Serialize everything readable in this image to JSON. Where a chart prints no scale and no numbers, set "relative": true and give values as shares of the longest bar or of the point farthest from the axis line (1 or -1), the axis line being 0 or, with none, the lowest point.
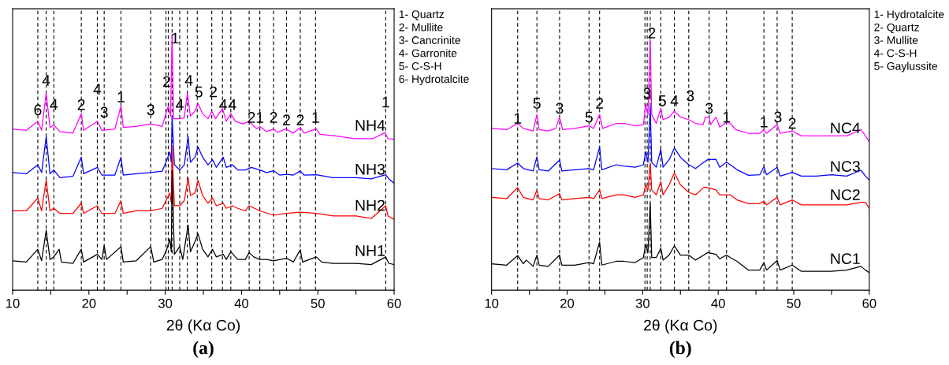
{
  "chart_data": [
    {
      "type": "line",
      "title": "(a)",
      "xlabel": "2θ (Kα Co)",
      "relative": true,
      "tick_labels": "x",
      "xlim": [
        10,
        60
      ],
      "xticks": [
        10,
        {
          "value": 15,
          "label": null
        },
        20,
        {
          "value": 25,
          "label": null
        },
        30,
        {
          "value": 35,
          "label": null
        },
        40,
        {
          "value": 45,
          "label": null
        },
        50,
        {
          "value": 55,
          "label": null
        },
        60
      ],
      "series": [
        {
          "name": "NH4",
          "color": "#ff00ff",
          "x": [
            10.0,
            11.8,
            13.3,
            13.8,
            14.4,
            14.9,
            15.4,
            16.2,
            17.9,
            19.0,
            19.3,
            21.1,
            21.7,
            23.4,
            24.2,
            24.5,
            26.2,
            28.1,
            29.6,
            30.1,
            30.4,
            30.7,
            30.9,
            31.1,
            31.9,
            32.5,
            32.9,
            33.3,
            33.9,
            34.3,
            34.9,
            35.6,
            36.1,
            36.6,
            37.5,
            38.0,
            38.6,
            39.2,
            40.2,
            41.0,
            41.3,
            42.0,
            42.4,
            43.3,
            44.2,
            44.7,
            45.8,
            46.8,
            47.7,
            48.2,
            49.8,
            50.3,
            52.3,
            54.8,
            57.2,
            58.8,
            59.2,
            60.0
          ],
          "values": [
            0.63,
            0.625,
            0.66,
            0.625,
            0.77,
            0.636,
            0.645,
            0.62,
            0.614,
            0.69,
            0.625,
            0.66,
            0.625,
            0.63,
            0.72,
            0.636,
            0.64,
            0.65,
            0.64,
            0.69,
            0.72,
            0.68,
            1.0,
            0.67,
            0.67,
            0.674,
            0.77,
            0.68,
            0.7,
            0.73,
            0.69,
            0.67,
            0.7,
            0.67,
            0.71,
            0.66,
            0.69,
            0.66,
            0.65,
            0.66,
            0.65,
            0.63,
            0.64,
            0.62,
            0.63,
            0.617,
            0.63,
            0.614,
            0.636,
            0.614,
            0.63,
            0.609,
            0.603,
            0.592,
            0.592,
            0.616,
            0.592,
            0.59
          ]
        },
        {
          "name": "NH3",
          "color": "#0000ff",
          "x": [
            10.0,
            11.8,
            13.3,
            13.8,
            14.4,
            14.9,
            15.4,
            16.2,
            17.9,
            19.0,
            19.3,
            21.1,
            21.7,
            23.4,
            24.2,
            24.5,
            26.2,
            28.1,
            29.6,
            30.1,
            30.6,
            30.8,
            30.9,
            31.2,
            31.9,
            32.5,
            33.0,
            33.3,
            33.9,
            34.3,
            34.9,
            35.6,
            36.2,
            36.7,
            37.6,
            38.0,
            38.8,
            39.5,
            40.5,
            41.3,
            42.4,
            43.3,
            44.2,
            45.0,
            45.9,
            46.8,
            47.7,
            48.2,
            49.8,
            52.0,
            55.0,
            57.0,
            58.9,
            59.3,
            60.0
          ],
          "values": [
            0.46,
            0.455,
            0.49,
            0.46,
            0.6,
            0.455,
            0.47,
            0.44,
            0.445,
            0.52,
            0.455,
            0.48,
            0.45,
            0.45,
            0.52,
            0.45,
            0.455,
            0.46,
            0.465,
            0.5,
            0.54,
            0.5,
            0.68,
            0.49,
            0.47,
            0.49,
            0.6,
            0.5,
            0.52,
            0.56,
            0.52,
            0.49,
            0.51,
            0.48,
            0.52,
            0.48,
            0.49,
            0.47,
            0.47,
            0.48,
            0.47,
            0.46,
            0.467,
            0.45,
            0.453,
            0.45,
            0.466,
            0.45,
            0.451,
            0.44,
            0.44,
            0.435,
            0.451,
            0.435,
            0.418
          ]
        },
        {
          "name": "NH2",
          "color": "#ff0000",
          "x": [
            10.0,
            11.8,
            13.3,
            13.8,
            14.4,
            14.9,
            15.4,
            16.2,
            17.9,
            19.0,
            19.3,
            21.1,
            21.7,
            23.4,
            24.2,
            24.5,
            26.2,
            28.1,
            29.6,
            30.1,
            30.6,
            30.8,
            30.9,
            31.2,
            31.9,
            32.5,
            33.0,
            33.3,
            33.9,
            34.3,
            34.9,
            35.6,
            36.2,
            36.7,
            37.6,
            38.0,
            38.8,
            39.5,
            40.5,
            41.0,
            42.4,
            44.2,
            45.9,
            47.7,
            49.8,
            52.0,
            55.0,
            57.0,
            58.9,
            59.2,
            60.0
          ],
          "values": [
            0.31,
            0.31,
            0.36,
            0.31,
            0.43,
            0.31,
            0.32,
            0.3,
            0.3,
            0.34,
            0.3,
            0.33,
            0.3,
            0.3,
            0.35,
            0.3,
            0.31,
            0.31,
            0.32,
            0.35,
            0.38,
            0.34,
            0.565,
            0.33,
            0.33,
            0.35,
            0.44,
            0.37,
            0.38,
            0.43,
            0.37,
            0.34,
            0.36,
            0.33,
            0.34,
            0.32,
            0.33,
            0.32,
            0.31,
            0.33,
            0.31,
            0.293,
            0.3,
            0.305,
            0.3,
            0.29,
            0.29,
            0.28,
            0.33,
            0.29,
            0.277
          ]
        },
        {
          "name": "NH1",
          "color": "#000000",
          "x": [
            10.0,
            11.8,
            13.3,
            13.8,
            14.4,
            14.9,
            15.4,
            16.1,
            16.4,
            17.9,
            19.0,
            19.3,
            21.1,
            21.7,
            22.0,
            22.3,
            24.2,
            24.5,
            26.2,
            28.1,
            28.5,
            29.6,
            30.2,
            30.6,
            30.8,
            30.9,
            31.2,
            31.9,
            32.3,
            33.0,
            33.3,
            33.9,
            34.3,
            34.9,
            35.6,
            36.2,
            36.7,
            37.6,
            38.0,
            38.6,
            39.5,
            40.5,
            41.0,
            41.6,
            42.4,
            43.3,
            44.2,
            45.9,
            46.8,
            47.7,
            48.0,
            49.8,
            50.5,
            52.0,
            55.0,
            57.0,
            58.9,
            59.3,
            60.0
          ],
          "values": [
            0.115,
            0.11,
            0.16,
            0.115,
            0.234,
            0.12,
            0.13,
            0.16,
            0.11,
            0.105,
            0.16,
            0.11,
            0.14,
            0.12,
            0.174,
            0.12,
            0.17,
            0.11,
            0.115,
            0.17,
            0.11,
            0.12,
            0.16,
            0.2,
            0.15,
            0.467,
            0.14,
            0.17,
            0.12,
            0.255,
            0.15,
            0.19,
            0.22,
            0.16,
            0.13,
            0.16,
            0.13,
            0.14,
            0.12,
            0.15,
            0.12,
            0.12,
            0.147,
            0.13,
            0.12,
            0.12,
            0.115,
            0.125,
            0.11,
            0.158,
            0.11,
            0.13,
            0.11,
            0.105,
            0.105,
            0.1,
            0.13,
            0.105,
            0.1
          ]
        }
      ],
      "ref_lines": [
        {
          "axis": "x",
          "value": 13.3,
          "line_style": "dashed"
        },
        {
          "axis": "x",
          "value": 14.4,
          "line_style": "dashed"
        },
        {
          "axis": "x",
          "value": 15.4,
          "line_style": "dashed"
        },
        {
          "axis": "x",
          "value": 19.0,
          "line_style": "dashed"
        },
        {
          "axis": "x",
          "value": 21.1,
          "line_style": "dashed"
        },
        {
          "axis": "x",
          "value": 22.0,
          "line_style": "dashed"
        },
        {
          "axis": "x",
          "value": 24.2,
          "line_style": "dashed"
        },
        {
          "axis": "x",
          "value": 28.1,
          "line_style": "dashed"
        },
        {
          "axis": "x",
          "value": 30.1,
          "line_style": "dashed"
        },
        {
          "axis": "x",
          "value": 30.4,
          "line_style": "dashed"
        },
        {
          "axis": "x",
          "value": 30.9,
          "line_style": "dashed"
        },
        {
          "axis": "x",
          "value": 31.9,
          "line_style": "dashed"
        },
        {
          "axis": "x",
          "value": 32.9,
          "line_style": "dashed"
        },
        {
          "axis": "x",
          "value": 34.2,
          "line_style": "dashed"
        },
        {
          "axis": "x",
          "value": 36.1,
          "line_style": "dashed"
        },
        {
          "axis": "x",
          "value": 37.5,
          "line_style": "dashed"
        },
        {
          "axis": "x",
          "value": 38.6,
          "line_style": "dashed"
        },
        {
          "axis": "x",
          "value": 41.0,
          "line_style": "dashed"
        },
        {
          "axis": "x",
          "value": 42.4,
          "line_style": "dashed"
        },
        {
          "axis": "x",
          "value": 44.2,
          "line_style": "dashed"
        },
        {
          "axis": "x",
          "value": 45.9,
          "line_style": "dashed"
        },
        {
          "axis": "x",
          "value": 47.7,
          "line_style": "dashed"
        },
        {
          "axis": "x",
          "value": 49.7,
          "line_style": "dashed"
        },
        {
          "axis": "x",
          "value": 58.9,
          "line_style": "dashed"
        }
      ],
      "annotations": [
        {
          "text": "6",
          "x": 13.3,
          "y": 0.7
        },
        {
          "text": "4",
          "x": 14.4,
          "y": 0.815
        },
        {
          "text": "4",
          "x": 15.4,
          "y": 0.72
        },
        {
          "text": "2",
          "x": 19.0,
          "y": 0.72
        },
        {
          "text": "4",
          "x": 21.1,
          "y": 0.78
        },
        {
          "text": "3",
          "x": 22.0,
          "y": 0.69
        },
        {
          "text": "1",
          "x": 24.2,
          "y": 0.75
        },
        {
          "text": "3",
          "x": 28.1,
          "y": 0.7
        },
        {
          "text": "2",
          "x": 30.2,
          "y": 0.81
        },
        {
          "text": "1",
          "x": 31.3,
          "y": 0.98
        },
        {
          "text": "4",
          "x": 31.9,
          "y": 0.72
        },
        {
          "text": "4",
          "x": 33.1,
          "y": 0.815
        },
        {
          "text": "5",
          "x": 34.4,
          "y": 0.77
        },
        {
          "text": "2",
          "x": 36.3,
          "y": 0.77
        },
        {
          "text": "4",
          "x": 37.6,
          "y": 0.72
        },
        {
          "text": "4",
          "x": 38.8,
          "y": 0.72
        },
        {
          "text": "2",
          "x": 41.3,
          "y": 0.67
        },
        {
          "text": "1",
          "x": 42.4,
          "y": 0.67
        },
        {
          "text": "2",
          "x": 44.2,
          "y": 0.67
        },
        {
          "text": "2",
          "x": 45.9,
          "y": 0.66
        },
        {
          "text": "2",
          "x": 47.7,
          "y": 0.66
        },
        {
          "text": "1",
          "x": 49.7,
          "y": 0.67
        },
        {
          "text": "1",
          "x": 58.9,
          "y": 0.73
        },
        "1- Quartz",
        "2- Mullite",
        "3- Cancrinite",
        "4- Garronite",
        "5- C-S-H",
        "6- Hydrotalcite"
      ]
    },
    {
      "type": "line",
      "title": "(b)",
      "xlabel": "2θ (Kα Co)",
      "relative": true,
      "tick_labels": "x",
      "xlim": [
        10,
        60
      ],
      "xticks": [
        10,
        {
          "value": 15,
          "label": null
        },
        20,
        {
          "value": 25,
          "label": null
        },
        30,
        {
          "value": 35,
          "label": null
        },
        40,
        {
          "value": 45,
          "label": null
        },
        50,
        {
          "value": 55,
          "label": null
        },
        60
      ],
      "series": [
        {
          "name": "NC4",
          "color": "#ff00ff",
          "x": [
            10.0,
            12.0,
            13.45,
            14.2,
            15.5,
            16.0,
            16.3,
            17.5,
            18.5,
            19.0,
            19.4,
            21.0,
            22.9,
            23.5,
            24.3,
            24.7,
            26.5,
            27.5,
            29.0,
            30.1,
            30.4,
            30.7,
            31.0,
            31.2,
            31.8,
            32.4,
            32.7,
            33.5,
            34.2,
            35.0,
            36.1,
            37.0,
            38.0,
            38.3,
            38.8,
            39.0,
            39.7,
            40.2,
            41.1,
            41.6,
            42.3,
            44.0,
            45.5,
            46.05,
            46.4,
            47.8,
            48.2,
            49.8,
            51.0,
            53.0,
            55.0,
            57.0,
            58.9,
            59.5,
            60.0
          ],
          "values": [
            0.645,
            0.64,
            0.665,
            0.645,
            0.635,
            0.7,
            0.64,
            0.635,
            0.645,
            0.69,
            0.64,
            0.645,
            0.655,
            0.645,
            0.7,
            0.645,
            0.665,
            0.665,
            0.655,
            0.66,
            0.74,
            0.7,
            1.0,
            0.7,
            0.665,
            0.725,
            0.68,
            0.69,
            0.714,
            0.69,
            0.68,
            0.665,
            0.66,
            0.69,
            0.69,
            0.66,
            0.69,
            0.65,
            0.67,
            0.665,
            0.64,
            0.625,
            0.625,
            0.64,
            0.625,
            0.66,
            0.625,
            0.635,
            0.615,
            0.615,
            0.615,
            0.615,
            0.64,
            0.615,
            0.591
          ]
        },
        {
          "name": "NC3",
          "color": "#0000ff",
          "x": [
            10.0,
            12.0,
            13.45,
            14.2,
            15.5,
            16.0,
            16.3,
            17.5,
            19.0,
            19.3,
            21.0,
            22.9,
            23.5,
            24.3,
            24.6,
            26.5,
            27.5,
            29.0,
            30.1,
            30.4,
            30.7,
            31.0,
            31.2,
            31.8,
            32.4,
            32.7,
            33.5,
            34.2,
            35.0,
            36.1,
            37.0,
            38.1,
            38.6,
            39.7,
            40.2,
            41.1,
            41.6,
            42.5,
            44.0,
            45.5,
            46.05,
            46.4,
            47.8,
            48.2,
            49.8,
            51.0,
            53.0,
            55.0,
            57.0,
            58.9,
            59.5,
            60.0
          ],
          "values": [
            0.485,
            0.48,
            0.507,
            0.485,
            0.475,
            0.532,
            0.48,
            0.475,
            0.519,
            0.475,
            0.48,
            0.485,
            0.48,
            0.571,
            0.48,
            0.5,
            0.495,
            0.49,
            0.5,
            0.552,
            0.51,
            0.734,
            0.51,
            0.49,
            0.562,
            0.49,
            0.52,
            0.567,
            0.53,
            0.5,
            0.485,
            0.51,
            0.52,
            0.522,
            0.49,
            0.51,
            0.5,
            0.48,
            0.458,
            0.46,
            0.493,
            0.46,
            0.49,
            0.455,
            0.47,
            0.455,
            0.455,
            0.46,
            0.455,
            0.478,
            0.455,
            0.438
          ]
        },
        {
          "name": "NC2",
          "color": "#ff0000",
          "x": [
            10.0,
            12.0,
            13.45,
            14.2,
            15.5,
            16.0,
            16.3,
            17.5,
            19.0,
            19.3,
            21.0,
            22.9,
            23.5,
            24.3,
            24.6,
            26.5,
            27.5,
            29.0,
            30.1,
            30.4,
            30.7,
            31.0,
            31.2,
            31.8,
            32.4,
            32.7,
            33.5,
            34.2,
            35.0,
            36.1,
            37.0,
            38.1,
            38.6,
            39.7,
            40.2,
            41.1,
            41.6,
            42.5,
            44.0,
            45.5,
            46.05,
            46.4,
            47.8,
            48.2,
            49.8,
            51.0,
            53.0,
            55.0,
            57.0,
            58.9,
            59.5,
            60.0
          ],
          "values": [
            0.37,
            0.365,
            0.409,
            0.37,
            0.36,
            0.399,
            0.365,
            0.36,
            0.385,
            0.36,
            0.365,
            0.37,
            0.365,
            0.4,
            0.365,
            0.38,
            0.38,
            0.37,
            0.38,
            0.419,
            0.4,
            0.507,
            0.4,
            0.38,
            0.433,
            0.38,
            0.42,
            0.468,
            0.42,
            0.39,
            0.38,
            0.41,
            0.409,
            0.4,
            0.38,
            0.38,
            0.38,
            0.36,
            0.345,
            0.345,
            0.355,
            0.34,
            0.37,
            0.34,
            0.36,
            0.34,
            0.34,
            0.34,
            0.34,
            0.35,
            0.35,
            0.325
          ]
        },
        {
          "name": "NC1",
          "color": "#000000",
          "x": [
            10.0,
            12.0,
            13.45,
            14.2,
            14.6,
            15.5,
            16.0,
            16.3,
            17.5,
            19.0,
            19.3,
            21.0,
            22.9,
            23.5,
            24.3,
            24.6,
            26.5,
            27.5,
            29.0,
            30.1,
            30.4,
            30.7,
            31.0,
            31.2,
            31.8,
            32.4,
            32.7,
            33.5,
            34.2,
            35.0,
            36.1,
            37.0,
            38.1,
            38.6,
            39.7,
            40.2,
            41.1,
            41.6,
            42.5,
            44.0,
            45.5,
            46.05,
            46.4,
            47.8,
            48.2,
            49.8,
            51.0,
            53.0,
            55.0,
            57.0,
            58.9,
            59.5,
            60.0
          ],
          "values": [
            0.105,
            0.1,
            0.138,
            0.105,
            0.12,
            0.095,
            0.14,
            0.1,
            0.095,
            0.14,
            0.1,
            0.1,
            0.11,
            0.105,
            0.192,
            0.1,
            0.115,
            0.115,
            0.11,
            0.13,
            0.182,
            0.15,
            0.345,
            0.13,
            0.13,
            0.167,
            0.12,
            0.14,
            0.177,
            0.14,
            0.14,
            0.12,
            0.14,
            0.15,
            0.143,
            0.125,
            0.14,
            0.13,
            0.115,
            0.08,
            0.08,
            0.11,
            0.08,
            0.118,
            0.08,
            0.1,
            0.075,
            0.075,
            0.075,
            0.08,
            0.095,
            0.08,
            0.07
          ]
        }
      ],
      "ref_lines": [
        {
          "axis": "x",
          "value": 13.45,
          "line_style": "dashed"
        },
        {
          "axis": "x",
          "value": 16.0,
          "line_style": "dashed"
        },
        {
          "axis": "x",
          "value": 19.0,
          "line_style": "dashed"
        },
        {
          "axis": "x",
          "value": 22.9,
          "line_style": "dashed"
        },
        {
          "axis": "x",
          "value": 24.3,
          "line_style": "dashed"
        },
        {
          "axis": "x",
          "value": 30.3,
          "line_style": "dashed"
        },
        {
          "axis": "x",
          "value": 30.6,
          "line_style": "dashed"
        },
        {
          "axis": "x",
          "value": 31.0,
          "line_style": "dashed"
        },
        {
          "axis": "x",
          "value": 32.4,
          "line_style": "dashed"
        },
        {
          "axis": "x",
          "value": 34.2,
          "line_style": "dashed"
        },
        {
          "axis": "x",
          "value": 36.1,
          "line_style": "dashed"
        },
        {
          "axis": "x",
          "value": 38.8,
          "line_style": "dashed"
        },
        {
          "axis": "x",
          "value": 41.1,
          "line_style": "dashed"
        },
        {
          "axis": "x",
          "value": 46.05,
          "line_style": "dashed"
        },
        {
          "axis": "x",
          "value": 47.8,
          "line_style": "dashed"
        },
        {
          "axis": "x",
          "value": 49.8,
          "line_style": "dashed"
        }
      ],
      "annotations": [
        {
          "text": "1",
          "x": 13.45,
          "y": 0.68
        },
        {
          "text": "5",
          "x": 16.0,
          "y": 0.74
        },
        {
          "text": "3",
          "x": 19.0,
          "y": 0.72
        },
        {
          "text": "5",
          "x": 22.9,
          "y": 0.685
        },
        {
          "text": "2",
          "x": 24.3,
          "y": 0.74
        },
        {
          "text": "3",
          "x": 30.6,
          "y": 0.78
        },
        {
          "text": "2",
          "x": 31.2,
          "y": 1.02
        },
        {
          "text": "5",
          "x": 32.6,
          "y": 0.75
        },
        {
          "text": "4",
          "x": 34.2,
          "y": 0.75
        },
        {
          "text": "3",
          "x": 36.3,
          "y": 0.77
        },
        {
          "text": "3",
          "x": 38.8,
          "y": 0.72
        },
        {
          "text": "1",
          "x": 41.1,
          "y": 0.685
        },
        {
          "text": "1",
          "x": 46.05,
          "y": 0.665
        },
        {
          "text": "3",
          "x": 47.9,
          "y": 0.685
        },
        {
          "text": "2",
          "x": 49.8,
          "y": 0.66
        },
        "1- Hydrotalcite",
        "2- Quartz",
        "3- Mullite",
        "4- C-S-H",
        "5- Gaylussite"
      ]
    }
  ]
}
